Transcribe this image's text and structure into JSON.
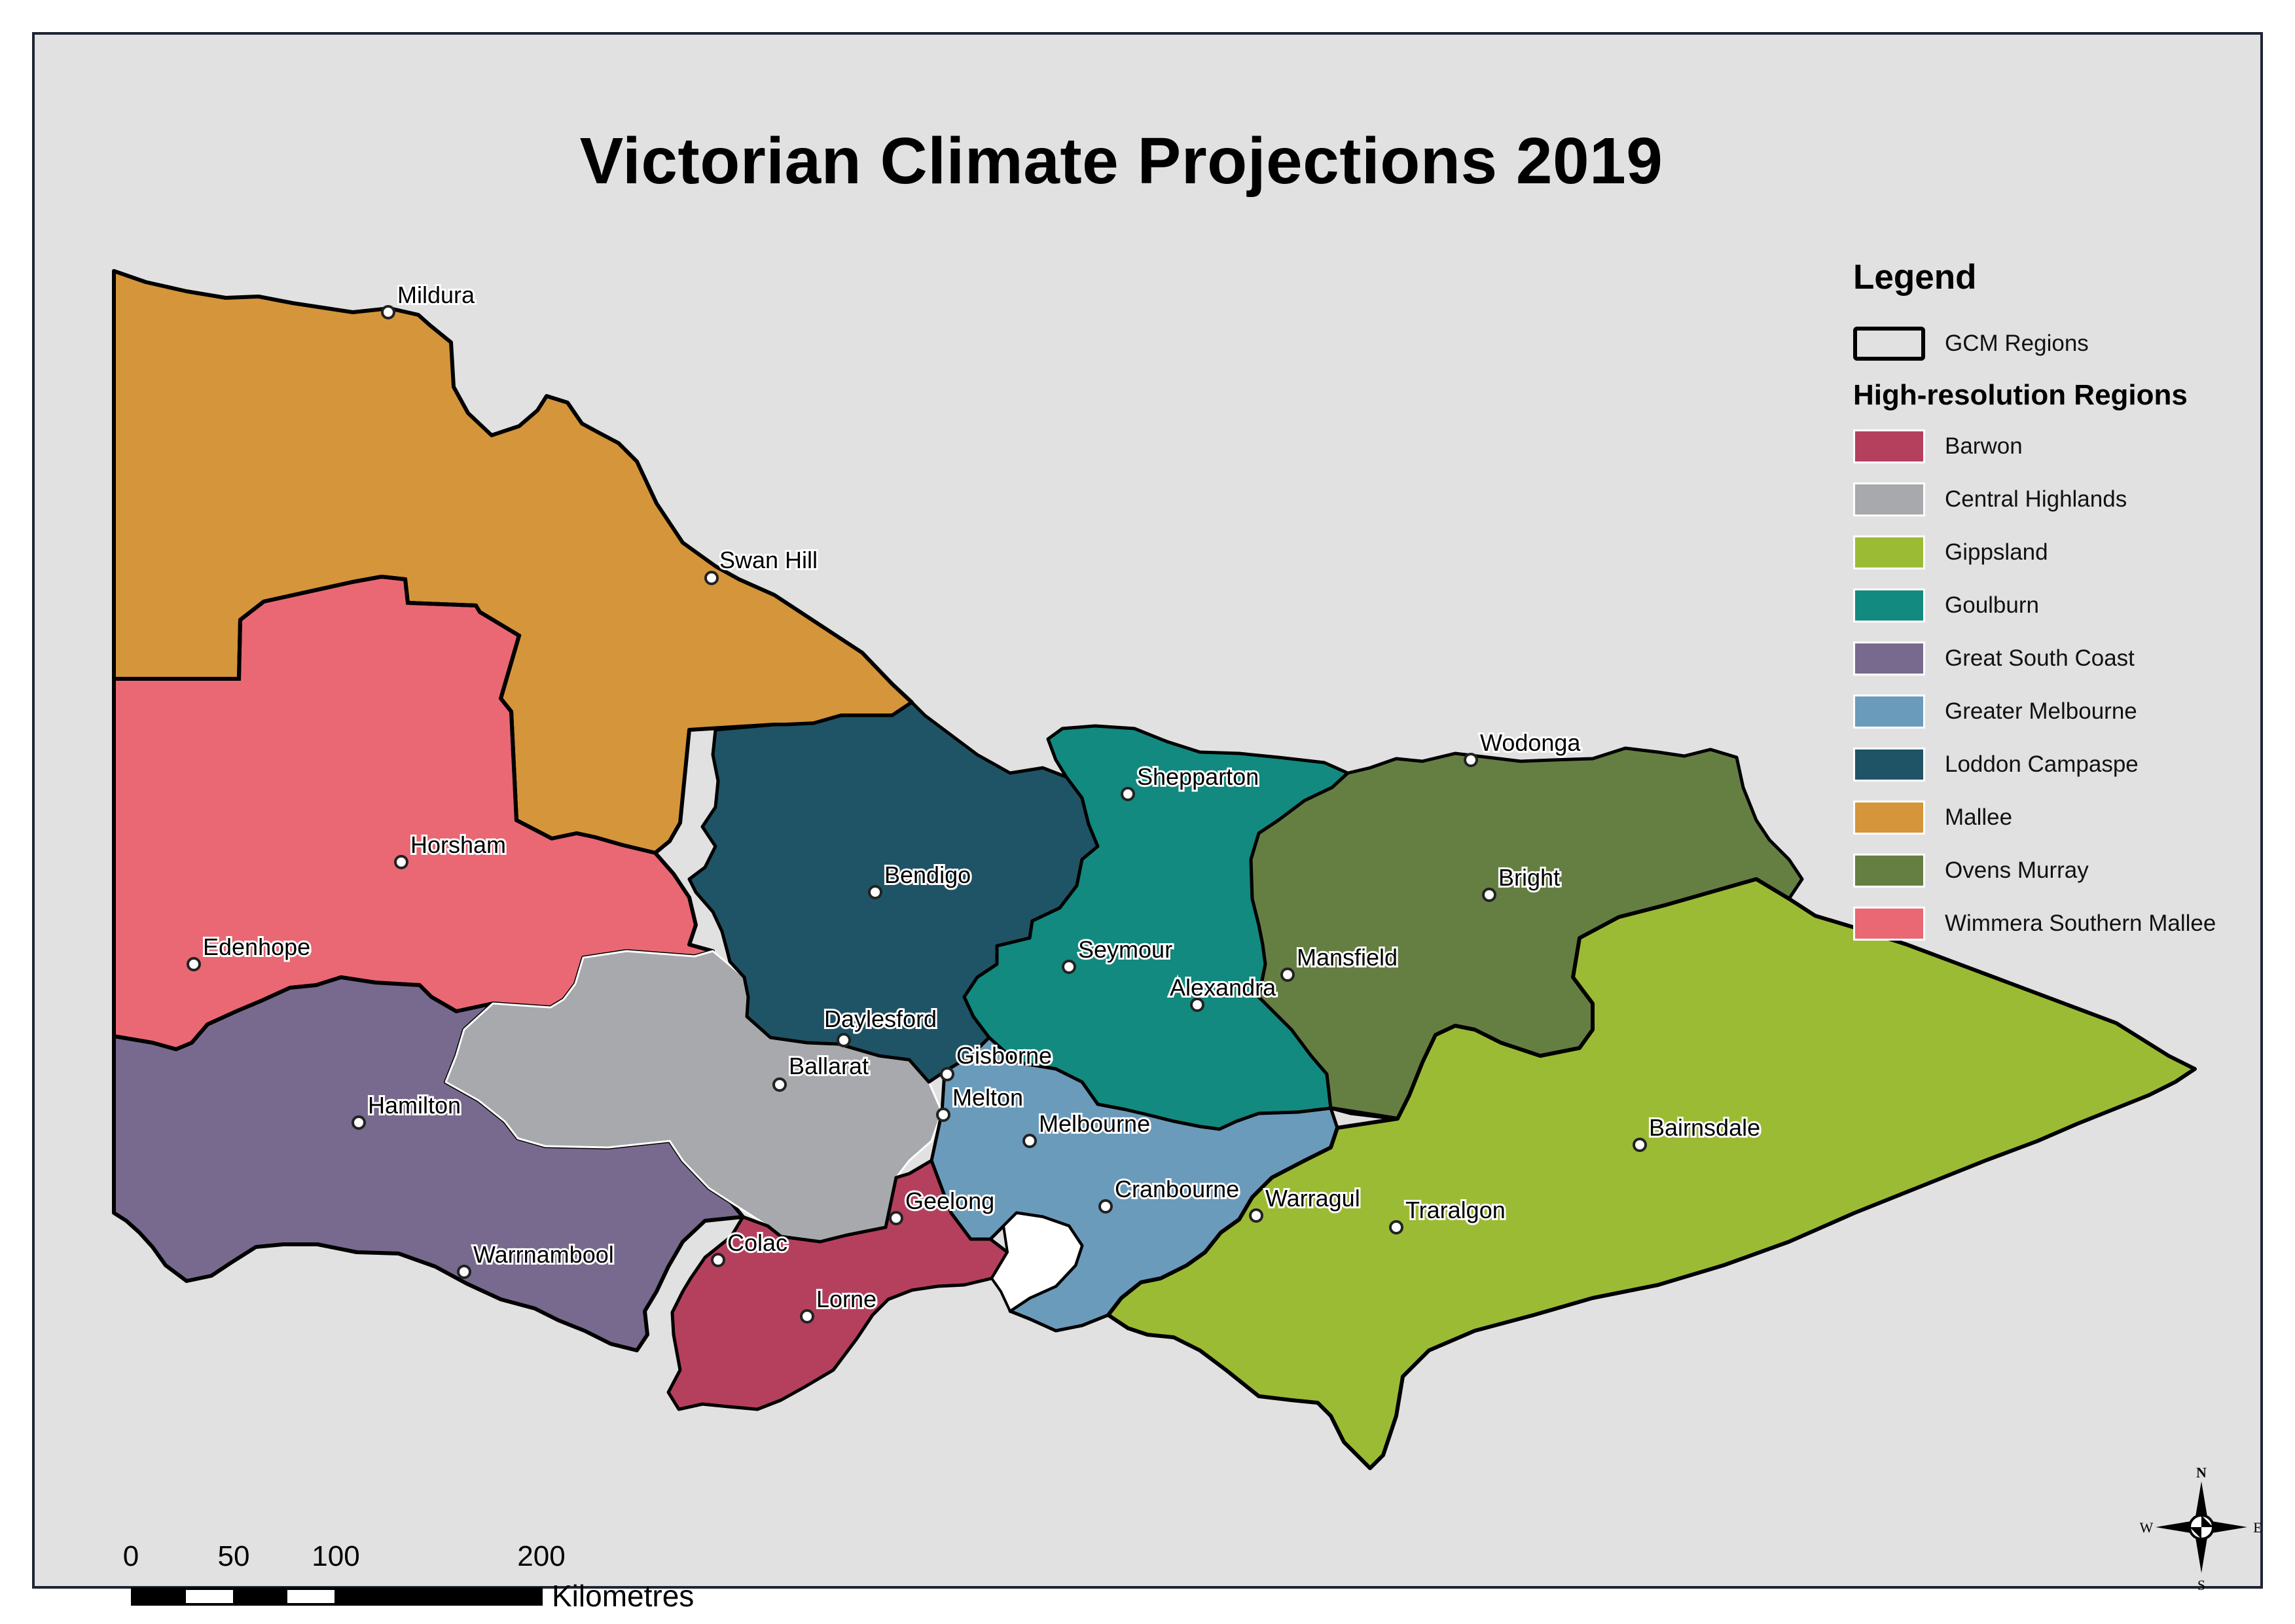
{
  "title": "Victorian Climate Projections 2019",
  "legend": {
    "heading": "Legend",
    "gcm_label": "GCM Regions",
    "subheading": "High-resolution Regions",
    "regions": [
      {
        "name": "Barwon",
        "color": "#b5405e"
      },
      {
        "name": "Central Highlands",
        "color": "#a8a9ad"
      },
      {
        "name": "Gippsland",
        "color": "#9cbb35"
      },
      {
        "name": "Goulburn",
        "color": "#128a80"
      },
      {
        "name": "Great South Coast",
        "color": "#786a8e"
      },
      {
        "name": "Greater Melbourne",
        "color": "#6b9bbb"
      },
      {
        "name": "Loddon Campaspe",
        "color": "#1f5466"
      },
      {
        "name": "Mallee",
        "color": "#d5953a"
      },
      {
        "name": "Ovens Murray",
        "color": "#657f43"
      },
      {
        "name": "Wimmera Southern Mallee",
        "color": "#e96874"
      }
    ]
  },
  "towns": [
    "Mildura",
    "Swan Hill",
    "Horsham",
    "Edenhope",
    "Bendigo",
    "Shepparton",
    "Wodonga",
    "Bright",
    "Seymour",
    "Mansfield",
    "Alexandra",
    "Daylesford",
    "Gisborne",
    "Ballarat",
    "Melton",
    "Hamilton",
    "Melbourne",
    "Bairnsdale",
    "Geelong",
    "Cranbourne",
    "Warragul",
    "Traralgon",
    "Colac",
    "Warrnambool",
    "Lorne"
  ],
  "scale": {
    "ticks": [
      "0",
      "50",
      "100",
      "200"
    ],
    "unit": "Kilometres"
  },
  "compass": {
    "n": "N",
    "s": "S",
    "e": "E",
    "w": "W"
  }
}
